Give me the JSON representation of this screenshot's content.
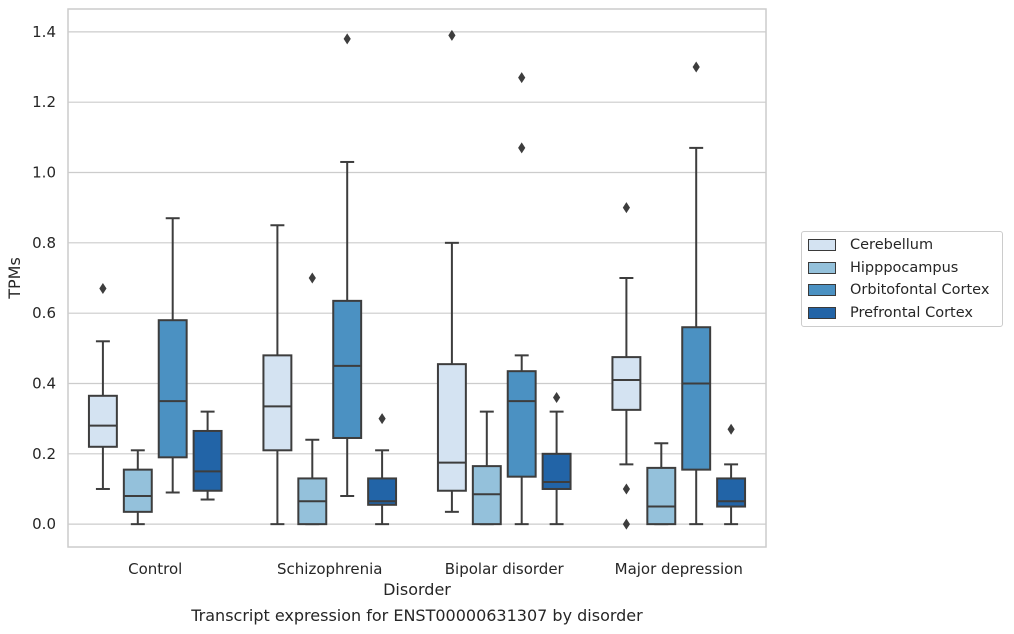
{
  "caption": "Transcript expression for ENST00000631307 by disorder",
  "chart_data": {
    "type": "boxplot",
    "xlabel": "Disorder",
    "ylabel": "TPMs",
    "ylim": [
      -0.065,
      1.465
    ],
    "yticks": [
      0.0,
      0.2,
      0.4,
      0.6,
      0.8,
      1.0,
      1.2,
      1.4
    ],
    "ytick_labels": [
      "0.0",
      "0.2",
      "0.4",
      "0.6",
      "0.8",
      "1.0",
      "1.2",
      "1.4"
    ],
    "grid": "horizontal",
    "legend_position": "right",
    "categories": [
      "Control",
      "Schizophrenia",
      "Bipolar disorder",
      "Major depression"
    ],
    "series": [
      {
        "name": "Cerebellum",
        "color": "#d4e3f2",
        "boxes": [
          {
            "whislo": 0.1,
            "q1": 0.22,
            "med": 0.28,
            "q3": 0.365,
            "whishi": 0.52,
            "fliers": [
              0.67
            ]
          },
          {
            "whislo": 0.0,
            "q1": 0.21,
            "med": 0.335,
            "q3": 0.48,
            "whishi": 0.85,
            "fliers": []
          },
          {
            "whislo": 0.035,
            "q1": 0.095,
            "med": 0.175,
            "q3": 0.455,
            "whishi": 0.8,
            "fliers": [
              1.39
            ]
          },
          {
            "whislo": 0.17,
            "q1": 0.325,
            "med": 0.41,
            "q3": 0.475,
            "whishi": 0.7,
            "fliers": [
              0.9,
              0.1,
              0.0
            ]
          }
        ]
      },
      {
        "name": "Hipppocampus",
        "color": "#94c1db",
        "boxes": [
          {
            "whislo": 0.0,
            "q1": 0.035,
            "med": 0.08,
            "q3": 0.155,
            "whishi": 0.21,
            "fliers": []
          },
          {
            "whislo": 0.0,
            "q1": 0.0,
            "med": 0.065,
            "q3": 0.13,
            "whishi": 0.24,
            "fliers": [
              0.7
            ]
          },
          {
            "whislo": 0.0,
            "q1": 0.0,
            "med": 0.085,
            "q3": 0.165,
            "whishi": 0.32,
            "fliers": []
          },
          {
            "whislo": 0.0,
            "q1": 0.0,
            "med": 0.05,
            "q3": 0.16,
            "whishi": 0.23,
            "fliers": []
          }
        ]
      },
      {
        "name": "Orbitofontal Cortex",
        "color": "#4b91c2",
        "boxes": [
          {
            "whislo": 0.09,
            "q1": 0.19,
            "med": 0.35,
            "q3": 0.58,
            "whishi": 0.87,
            "fliers": []
          },
          {
            "whislo": 0.08,
            "q1": 0.245,
            "med": 0.45,
            "q3": 0.635,
            "whishi": 1.03,
            "fliers": [
              1.38
            ]
          },
          {
            "whislo": 0.0,
            "q1": 0.135,
            "med": 0.35,
            "q3": 0.435,
            "whishi": 0.48,
            "fliers": [
              1.27,
              1.07
            ]
          },
          {
            "whislo": 0.0,
            "q1": 0.155,
            "med": 0.4,
            "q3": 0.56,
            "whishi": 1.07,
            "fliers": [
              1.3
            ]
          }
        ]
      },
      {
        "name": "Prefrontal Cortex",
        "color": "#2264a7",
        "boxes": [
          {
            "whislo": 0.07,
            "q1": 0.095,
            "med": 0.15,
            "q3": 0.265,
            "whishi": 0.32,
            "fliers": []
          },
          {
            "whislo": 0.0,
            "q1": 0.055,
            "med": 0.065,
            "q3": 0.13,
            "whishi": 0.21,
            "fliers": [
              0.3
            ]
          },
          {
            "whislo": 0.0,
            "q1": 0.1,
            "med": 0.12,
            "q3": 0.2,
            "whishi": 0.32,
            "fliers": [
              0.36
            ]
          },
          {
            "whislo": 0.0,
            "q1": 0.05,
            "med": 0.065,
            "q3": 0.13,
            "whishi": 0.17,
            "fliers": [
              0.27
            ]
          }
        ]
      }
    ]
  }
}
